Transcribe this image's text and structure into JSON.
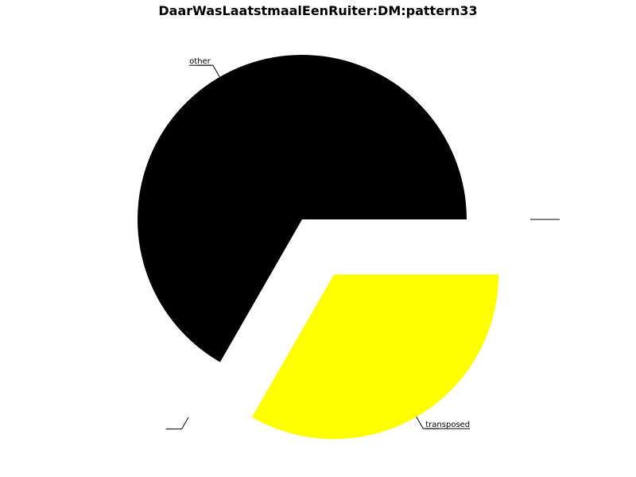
{
  "chart_data": {
    "type": "pie",
    "title": "DaarWasLaatstmaalEenRuiter:DM:pattern33",
    "slices": [
      {
        "label": "",
        "value": 0.0,
        "color": "#ffffff",
        "exploded": true
      },
      {
        "label": "transposed",
        "value": 33.3,
        "color": "#ffff00",
        "exploded": true
      },
      {
        "label": "",
        "value": 0.0,
        "color": "#ffffff",
        "exploded": true
      },
      {
        "label": "other",
        "value": 66.7,
        "color": "#000000",
        "exploded": false
      }
    ]
  }
}
